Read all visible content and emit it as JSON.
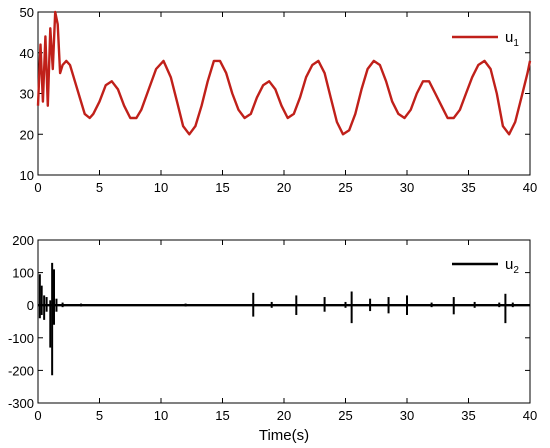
{
  "chart_data": [
    {
      "type": "line",
      "xlim": [
        0,
        40
      ],
      "ylim": [
        10,
        50
      ],
      "xticks": [
        "0",
        "5",
        "10",
        "15",
        "20",
        "25",
        "30",
        "35",
        "40"
      ],
      "yticks": [
        "10",
        "20",
        "30",
        "40",
        "50"
      ],
      "xlabel": "",
      "ylabel": "",
      "legend_position": "top-right",
      "series": [
        {
          "name": "u",
          "name_sub": "1",
          "color": "#c0201a",
          "x": [
            0,
            0.2,
            0.4,
            0.6,
            0.8,
            1.0,
            1.2,
            1.4,
            1.6,
            1.8,
            2.0,
            2.3,
            2.6,
            3.0,
            3.4,
            3.8,
            4.2,
            4.5,
            5.0,
            5.5,
            6.0,
            6.5,
            7.0,
            7.5,
            8.0,
            8.4,
            9.0,
            9.6,
            10.2,
            10.8,
            11.3,
            11.8,
            12.3,
            12.8,
            13.3,
            13.8,
            14.3,
            14.8,
            15.3,
            15.8,
            16.3,
            16.8,
            17.3,
            17.8,
            18.3,
            18.8,
            19.3,
            19.8,
            20.3,
            20.8,
            21.3,
            21.8,
            22.3,
            22.8,
            23.3,
            23.8,
            24.3,
            24.8,
            25.3,
            25.8,
            26.3,
            26.8,
            27.3,
            27.8,
            28.3,
            28.8,
            29.3,
            29.8,
            30.3,
            30.8,
            31.3,
            31.8,
            32.3,
            32.8,
            33.3,
            33.8,
            34.3,
            34.8,
            35.3,
            35.8,
            36.3,
            36.8,
            37.3,
            37.8,
            38.3,
            38.8,
            39.3,
            39.8,
            40.0
          ],
          "y": [
            27,
            42,
            28,
            44,
            27,
            46,
            36,
            50,
            47,
            35,
            37,
            38,
            37,
            33,
            29,
            25,
            24,
            25,
            28,
            32,
            33,
            31,
            27,
            24,
            24,
            26,
            31,
            36,
            38,
            34,
            28,
            22,
            20,
            22,
            27,
            33,
            38,
            38,
            35,
            30,
            26,
            24,
            25,
            29,
            32,
            33,
            31,
            27,
            24,
            25,
            29,
            34,
            37,
            38,
            35,
            29,
            23,
            20,
            21,
            25,
            31,
            36,
            38,
            37,
            33,
            28,
            25,
            24,
            26,
            30,
            33,
            33,
            30,
            27,
            24,
            24,
            26,
            30,
            34,
            37,
            38,
            36,
            30,
            22,
            20,
            23,
            29,
            35,
            38
          ]
        }
      ]
    },
    {
      "type": "line",
      "xlim": [
        0,
        40
      ],
      "ylim": [
        -300,
        200
      ],
      "xticks": [
        "0",
        "5",
        "10",
        "15",
        "20",
        "25",
        "30",
        "35",
        "40"
      ],
      "yticks": [
        "-300",
        "-200",
        "-100",
        "0",
        "100",
        "200"
      ],
      "xlabel": "Time(s)",
      "ylabel": "",
      "legend_position": "top-right",
      "series": [
        {
          "name": "u",
          "name_sub": "2",
          "color": "#000000",
          "spikes": [
            {
              "x": 0.15,
              "max": 95,
              "min": -40
            },
            {
              "x": 0.3,
              "max": 60,
              "min": -30
            },
            {
              "x": 0.5,
              "max": 30,
              "min": -45
            },
            {
              "x": 0.7,
              "max": 25,
              "min": -20
            },
            {
              "x": 1.0,
              "max": 15,
              "min": -130
            },
            {
              "x": 1.15,
              "max": 130,
              "min": -215
            },
            {
              "x": 1.3,
              "max": 110,
              "min": -60
            },
            {
              "x": 1.5,
              "max": 20,
              "min": -20
            },
            {
              "x": 2.0,
              "max": 8,
              "min": -6
            },
            {
              "x": 3.5,
              "max": 5,
              "min": -4
            },
            {
              "x": 12.0,
              "max": 5,
              "min": -4
            },
            {
              "x": 17.5,
              "max": 38,
              "min": -35
            },
            {
              "x": 19.0,
              "max": 10,
              "min": -8
            },
            {
              "x": 21.0,
              "max": 30,
              "min": -30
            },
            {
              "x": 23.3,
              "max": 25,
              "min": -20
            },
            {
              "x": 25.0,
              "max": 10,
              "min": -8
            },
            {
              "x": 25.5,
              "max": 42,
              "min": -55
            },
            {
              "x": 27.0,
              "max": 20,
              "min": -18
            },
            {
              "x": 28.5,
              "max": 25,
              "min": -25
            },
            {
              "x": 30.0,
              "max": 30,
              "min": -30
            },
            {
              "x": 32.0,
              "max": 8,
              "min": -6
            },
            {
              "x": 33.8,
              "max": 25,
              "min": -28
            },
            {
              "x": 35.5,
              "max": 10,
              "min": -8
            },
            {
              "x": 37.5,
              "max": 8,
              "min": -6
            },
            {
              "x": 38.0,
              "max": 35,
              "min": -55
            },
            {
              "x": 38.6,
              "max": 8,
              "min": -6
            }
          ]
        }
      ]
    }
  ]
}
